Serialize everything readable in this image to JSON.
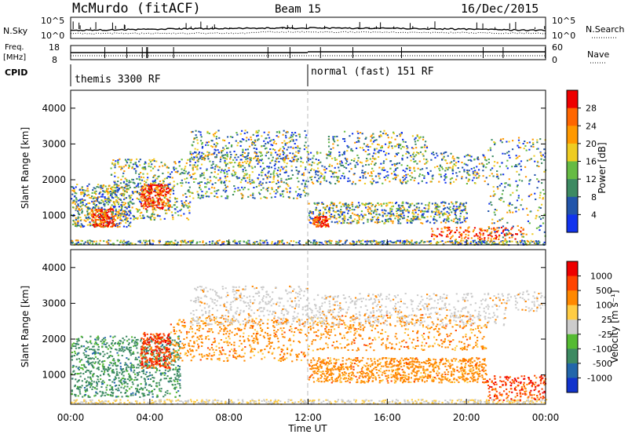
{
  "header": {
    "station": "McMurdo (fitACF)",
    "beam": "Beam 15",
    "date": "16/Dec/2015"
  },
  "top_panels": {
    "nsky_label": "N.Sky",
    "nsky_ticks": [
      "10^5",
      "10^0"
    ],
    "nsearch_label": "N.Search",
    "nsearch_ticks": [
      "10^5",
      "10^0"
    ],
    "freq_label": "Freq.",
    "freq_unit": "[MHz]",
    "freq_ticks": [
      "18",
      "8"
    ],
    "nave_label": "Nave",
    "nave_ticks": [
      "60",
      "0"
    ],
    "cpid_label": "CPID",
    "cpid_segments": [
      {
        "label": "themis 3300 RF",
        "start_hour": 0
      },
      {
        "label": "normal (fast) 151 RF",
        "start_hour": 12
      }
    ]
  },
  "chart_data": [
    {
      "type": "heatmap",
      "name": "power",
      "ylabel": "Slant Range [km]",
      "xlabel": "",
      "ylim": [
        180,
        4500
      ],
      "xlim": [
        0,
        24
      ],
      "yticks": [
        "1000",
        "2000",
        "3000",
        "4000"
      ],
      "colorbar_label": "Power [dB]",
      "colorbar_ticks": [
        "4",
        "8",
        "12",
        "16",
        "20",
        "24",
        "28"
      ],
      "colorbar_colors": [
        "#1133ee",
        "#2255aa",
        "#3d8a62",
        "#66bb44",
        "#eecc22",
        "#ff9900",
        "#ff6600",
        "#ee0000"
      ]
    },
    {
      "type": "heatmap",
      "name": "velocity",
      "ylabel": "Slant Range [km]",
      "xlabel": "Time UT",
      "ylim": [
        180,
        4500
      ],
      "xlim": [
        0,
        24
      ],
      "yticks": [
        "1000",
        "2000",
        "3000",
        "4000"
      ],
      "xticks": [
        "00:00",
        "04:00",
        "08:00",
        "12:00",
        "16:00",
        "20:00",
        "00:00"
      ],
      "colorbar_label": "Velocity [m s⁻¹]",
      "colorbar_ticks": [
        "1000",
        "500",
        "100",
        "25",
        "-25",
        "-100",
        "-500",
        "-1000"
      ],
      "colorbar_colors": [
        "#1133cc",
        "#2266aa",
        "#3d8a62",
        "#55bb33",
        "#cccccc",
        "#ffcc44",
        "#ff8800",
        "#ff4400",
        "#ee0000"
      ]
    }
  ]
}
